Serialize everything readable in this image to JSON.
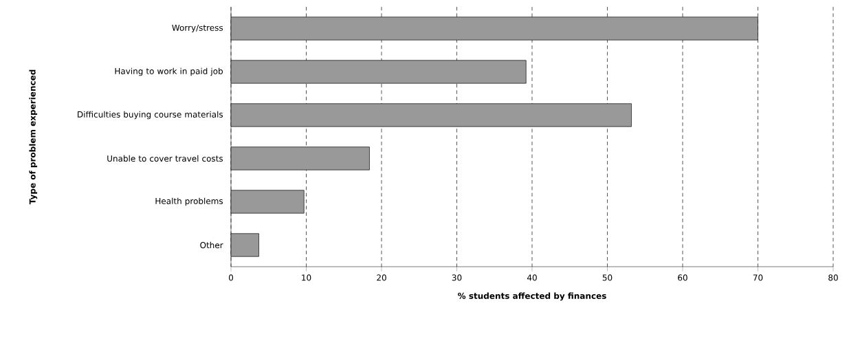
{
  "chart_data": {
    "type": "bar",
    "orientation": "horizontal",
    "xlabel": "% students affected by finances",
    "ylabel": "Type of problem experienced",
    "categories": [
      "Worry/stress",
      "Having to work in paid job",
      "Difficulties buying course materials",
      "Unable to cover travel costs",
      "Health problems",
      "Other"
    ],
    "values": [
      70,
      39.2,
      53.2,
      18.4,
      9.7,
      3.7
    ],
    "color": "#999999",
    "xlim": [
      0,
      80
    ],
    "xticks": [
      0,
      10,
      20,
      30,
      40,
      50,
      60,
      70,
      80
    ],
    "grid": "x"
  }
}
